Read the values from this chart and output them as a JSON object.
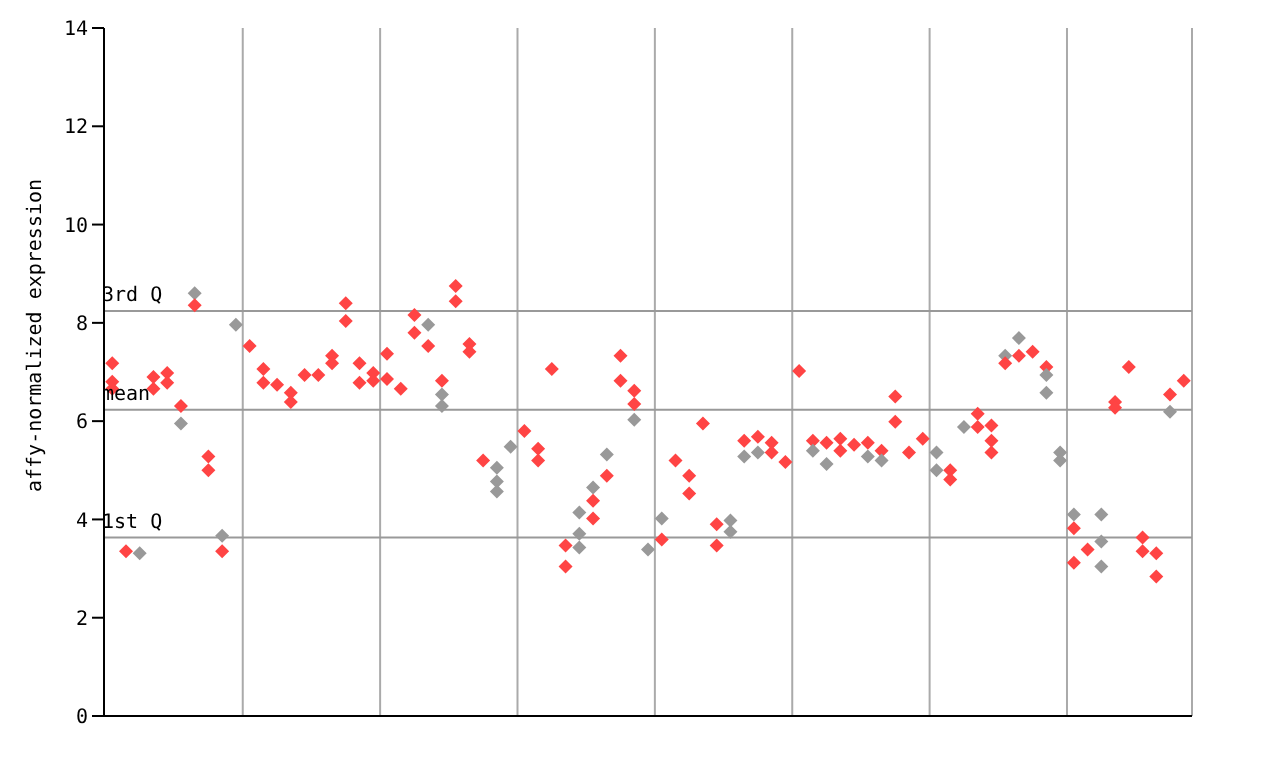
{
  "chart_data": {
    "type": "scatter",
    "ylabel": "affy-normalized expression",
    "ylim": [
      0,
      14
    ],
    "yticks": [
      0,
      2,
      4,
      6,
      8,
      10,
      12,
      14
    ],
    "grid": "x",
    "marker": "diamond",
    "legend": false,
    "categories": [
      null,
      null,
      null,
      null,
      null,
      null,
      null,
      null,
      null,
      null,
      null,
      null,
      null,
      null,
      null,
      null,
      null,
      null,
      null,
      null,
      null,
      null,
      null,
      null,
      null,
      null,
      null,
      null,
      null,
      null,
      null,
      null,
      null,
      null,
      null,
      null,
      null,
      null,
      null,
      null,
      null,
      null,
      null,
      null,
      null,
      null,
      null,
      null,
      null,
      null,
      null,
      null,
      null,
      null,
      null,
      null,
      null,
      null,
      null,
      null,
      null,
      null,
      null,
      null,
      null,
      null,
      null,
      null,
      null,
      null,
      null,
      null,
      null,
      null,
      null,
      null,
      null,
      null,
      null
    ],
    "ref_lines": [
      {
        "axis": "y",
        "value": 8.24,
        "label": "3rd Q",
        "color": "#999999"
      },
      {
        "axis": "y",
        "value": 6.23,
        "label": "mean",
        "color": "#999999"
      },
      {
        "axis": "y",
        "value": 3.63,
        "label": "1st Q",
        "color": "#999999"
      }
    ],
    "series": [
      {
        "values": [
          7.18,
          3.35,
          3.31,
          6.9,
          6.98,
          6.31,
          8.6,
          5.28,
          3.67,
          7.96,
          7.53,
          7.06,
          6.74,
          6.58,
          6.94,
          6.94,
          7.33,
          8.4,
          7.18,
          6.98,
          7.37,
          6.66,
          8.16,
          7.96,
          6.82,
          8.75,
          7.57,
          5.2,
          5.05,
          5.48,
          5.8,
          5.44,
          7.06,
          3.47,
          4.14,
          4.65,
          5.32,
          7.33,
          6.62,
          3.39,
          4.02,
          5.2,
          4.89,
          5.95,
          3.9,
          3.98,
          5.6,
          5.68,
          5.56,
          5.17,
          7.02,
          5.6,
          5.56,
          5.64,
          5.52,
          5.56,
          5.4,
          6.5,
          5.36,
          5.64,
          5.36,
          5.0,
          5.88,
          6.15,
          5.91,
          7.33,
          7.69,
          7.41,
          7.1,
          5.36,
          4.1,
          3.39,
          4.1,
          6.39,
          7.1,
          3.63,
          3.31,
          6.54,
          6.82
        ],
        "colors": [
          "#ff4444",
          "#ff4444",
          "#999999",
          "#ff4444",
          "#ff4444",
          "#ff4444",
          "#999999",
          "#ff4444",
          "#999999",
          "#999999",
          "#ff4444",
          "#ff4444",
          "#ff4444",
          "#ff4444",
          "#ff4444",
          "#ff4444",
          "#ff4444",
          "#ff4444",
          "#ff4444",
          "#ff4444",
          "#ff4444",
          "#ff4444",
          "#ff4444",
          "#999999",
          "#ff4444",
          "#ff4444",
          "#ff4444",
          "#ff4444",
          "#999999",
          "#999999",
          "#ff4444",
          "#ff4444",
          "#ff4444",
          "#ff4444",
          "#999999",
          "#999999",
          "#999999",
          "#ff4444",
          "#ff4444",
          "#999999",
          "#999999",
          "#ff4444",
          "#ff4444",
          "#ff4444",
          "#ff4444",
          "#999999",
          "#ff4444",
          "#ff4444",
          "#ff4444",
          "#ff4444",
          "#ff4444",
          "#ff4444",
          "#ff4444",
          "#ff4444",
          "#ff4444",
          "#ff4444",
          "#ff4444",
          "#ff4444",
          "#ff4444",
          "#ff4444",
          "#999999",
          "#ff4444",
          "#999999",
          "#ff4444",
          "#ff4444",
          "#999999",
          "#999999",
          "#ff4444",
          "#ff4444",
          "#999999",
          "#999999",
          "#ff4444",
          "#999999",
          "#ff4444",
          "#ff4444",
          "#ff4444",
          "#ff4444",
          "#ff4444",
          "#ff4444"
        ]
      },
      {
        "values": [
          6.8,
          null,
          null,
          6.66,
          6.78,
          5.95,
          8.36,
          5.0,
          3.35,
          null,
          null,
          6.78,
          null,
          6.39,
          null,
          null,
          7.18,
          8.04,
          6.78,
          6.82,
          6.86,
          null,
          7.8,
          7.53,
          6.54,
          8.44,
          7.41,
          null,
          4.77,
          null,
          null,
          5.2,
          null,
          3.04,
          3.71,
          4.38,
          4.89,
          6.82,
          6.35,
          null,
          3.59,
          null,
          4.53,
          null,
          3.47,
          3.75,
          5.28,
          5.36,
          5.36,
          null,
          null,
          5.4,
          5.13,
          5.4,
          null,
          5.28,
          5.2,
          5.99,
          null,
          null,
          5.0,
          4.81,
          null,
          5.88,
          5.6,
          7.18,
          7.33,
          null,
          6.94,
          5.2,
          3.82,
          null,
          3.55,
          6.27,
          null,
          3.35,
          2.84,
          6.19,
          null
        ],
        "colors": [
          "#ff4444",
          null,
          null,
          "#ff4444",
          "#ff4444",
          "#999999",
          "#ff4444",
          "#ff4444",
          "#ff4444",
          null,
          null,
          "#ff4444",
          null,
          "#ff4444",
          null,
          null,
          "#ff4444",
          "#ff4444",
          "#ff4444",
          "#ff4444",
          "#ff4444",
          null,
          "#ff4444",
          "#ff4444",
          "#999999",
          "#ff4444",
          "#ff4444",
          null,
          "#999999",
          null,
          null,
          "#ff4444",
          null,
          "#ff4444",
          "#999999",
          "#ff4444",
          "#ff4444",
          "#ff4444",
          "#ff4444",
          null,
          "#ff4444",
          null,
          "#ff4444",
          null,
          "#ff4444",
          "#999999",
          "#999999",
          "#999999",
          "#ff4444",
          null,
          null,
          "#999999",
          "#999999",
          "#ff4444",
          null,
          "#999999",
          "#999999",
          "#ff4444",
          null,
          null,
          "#999999",
          "#ff4444",
          null,
          "#ff4444",
          "#ff4444",
          "#ff4444",
          "#ff4444",
          null,
          "#999999",
          "#999999",
          "#ff4444",
          null,
          "#999999",
          "#ff4444",
          null,
          "#ff4444",
          "#ff4444",
          "#999999",
          null
        ]
      },
      {
        "values": [
          6.66,
          null,
          null,
          null,
          null,
          null,
          null,
          null,
          null,
          null,
          null,
          null,
          null,
          null,
          null,
          null,
          null,
          null,
          null,
          null,
          null,
          null,
          null,
          null,
          6.31,
          null,
          null,
          null,
          4.57,
          null,
          null,
          null,
          null,
          null,
          3.43,
          4.02,
          null,
          null,
          6.03,
          null,
          null,
          null,
          null,
          null,
          null,
          null,
          null,
          null,
          null,
          null,
          null,
          null,
          null,
          null,
          null,
          null,
          null,
          null,
          null,
          null,
          null,
          null,
          null,
          null,
          5.36,
          null,
          null,
          null,
          6.58,
          null,
          3.12,
          null,
          3.04,
          null,
          null,
          null,
          null,
          null,
          null
        ],
        "colors": [
          "#ff4444",
          null,
          null,
          null,
          null,
          null,
          null,
          null,
          null,
          null,
          null,
          null,
          null,
          null,
          null,
          null,
          null,
          null,
          null,
          null,
          null,
          null,
          null,
          null,
          "#999999",
          null,
          null,
          null,
          "#999999",
          null,
          null,
          null,
          null,
          null,
          "#999999",
          "#ff4444",
          null,
          null,
          "#999999",
          null,
          null,
          null,
          null,
          null,
          null,
          null,
          null,
          null,
          null,
          null,
          null,
          null,
          null,
          null,
          null,
          null,
          null,
          null,
          null,
          null,
          null,
          null,
          null,
          null,
          "#ff4444",
          null,
          null,
          null,
          "#999999",
          null,
          "#ff4444",
          null,
          "#999999",
          null,
          null,
          null,
          null,
          null,
          null
        ]
      }
    ]
  }
}
